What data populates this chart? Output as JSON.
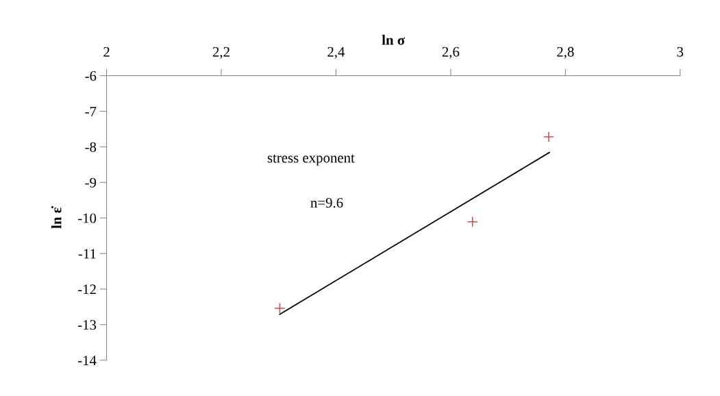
{
  "chart_data": {
    "type": "scatter",
    "xlabel": "ln σ",
    "ylabel": "ln ε̇",
    "xlim": [
      2,
      3
    ],
    "ylim": [
      -14,
      -6
    ],
    "xticks": [
      2,
      {
        "value": 2.2,
        "label": "2,2"
      },
      {
        "value": 2.4,
        "label": "2,4"
      },
      {
        "value": 2.6,
        "label": "2,6"
      },
      {
        "value": 2.8,
        "label": "2,8"
      },
      3
    ],
    "yticks": [
      -14,
      -13,
      -12,
      -11,
      -10,
      -9,
      -8,
      -7,
      -6
    ],
    "grid": false,
    "legend": false,
    "series": [
      {
        "color": "#c0504d",
        "marker": "cross",
        "x": [
          2.302,
          2.638,
          2.771
        ],
        "values": [
          -12.54,
          -10.11,
          -7.72
        ]
      },
      {
        "type": "line",
        "color": "#000000",
        "marker": "none",
        "line_style": "solid",
        "x": [
          2.302,
          2.772
        ],
        "values": [
          -12.71,
          -8.16
        ]
      }
    ],
    "annotations": [
      "stress exponent",
      "n=9.6"
    ]
  }
}
